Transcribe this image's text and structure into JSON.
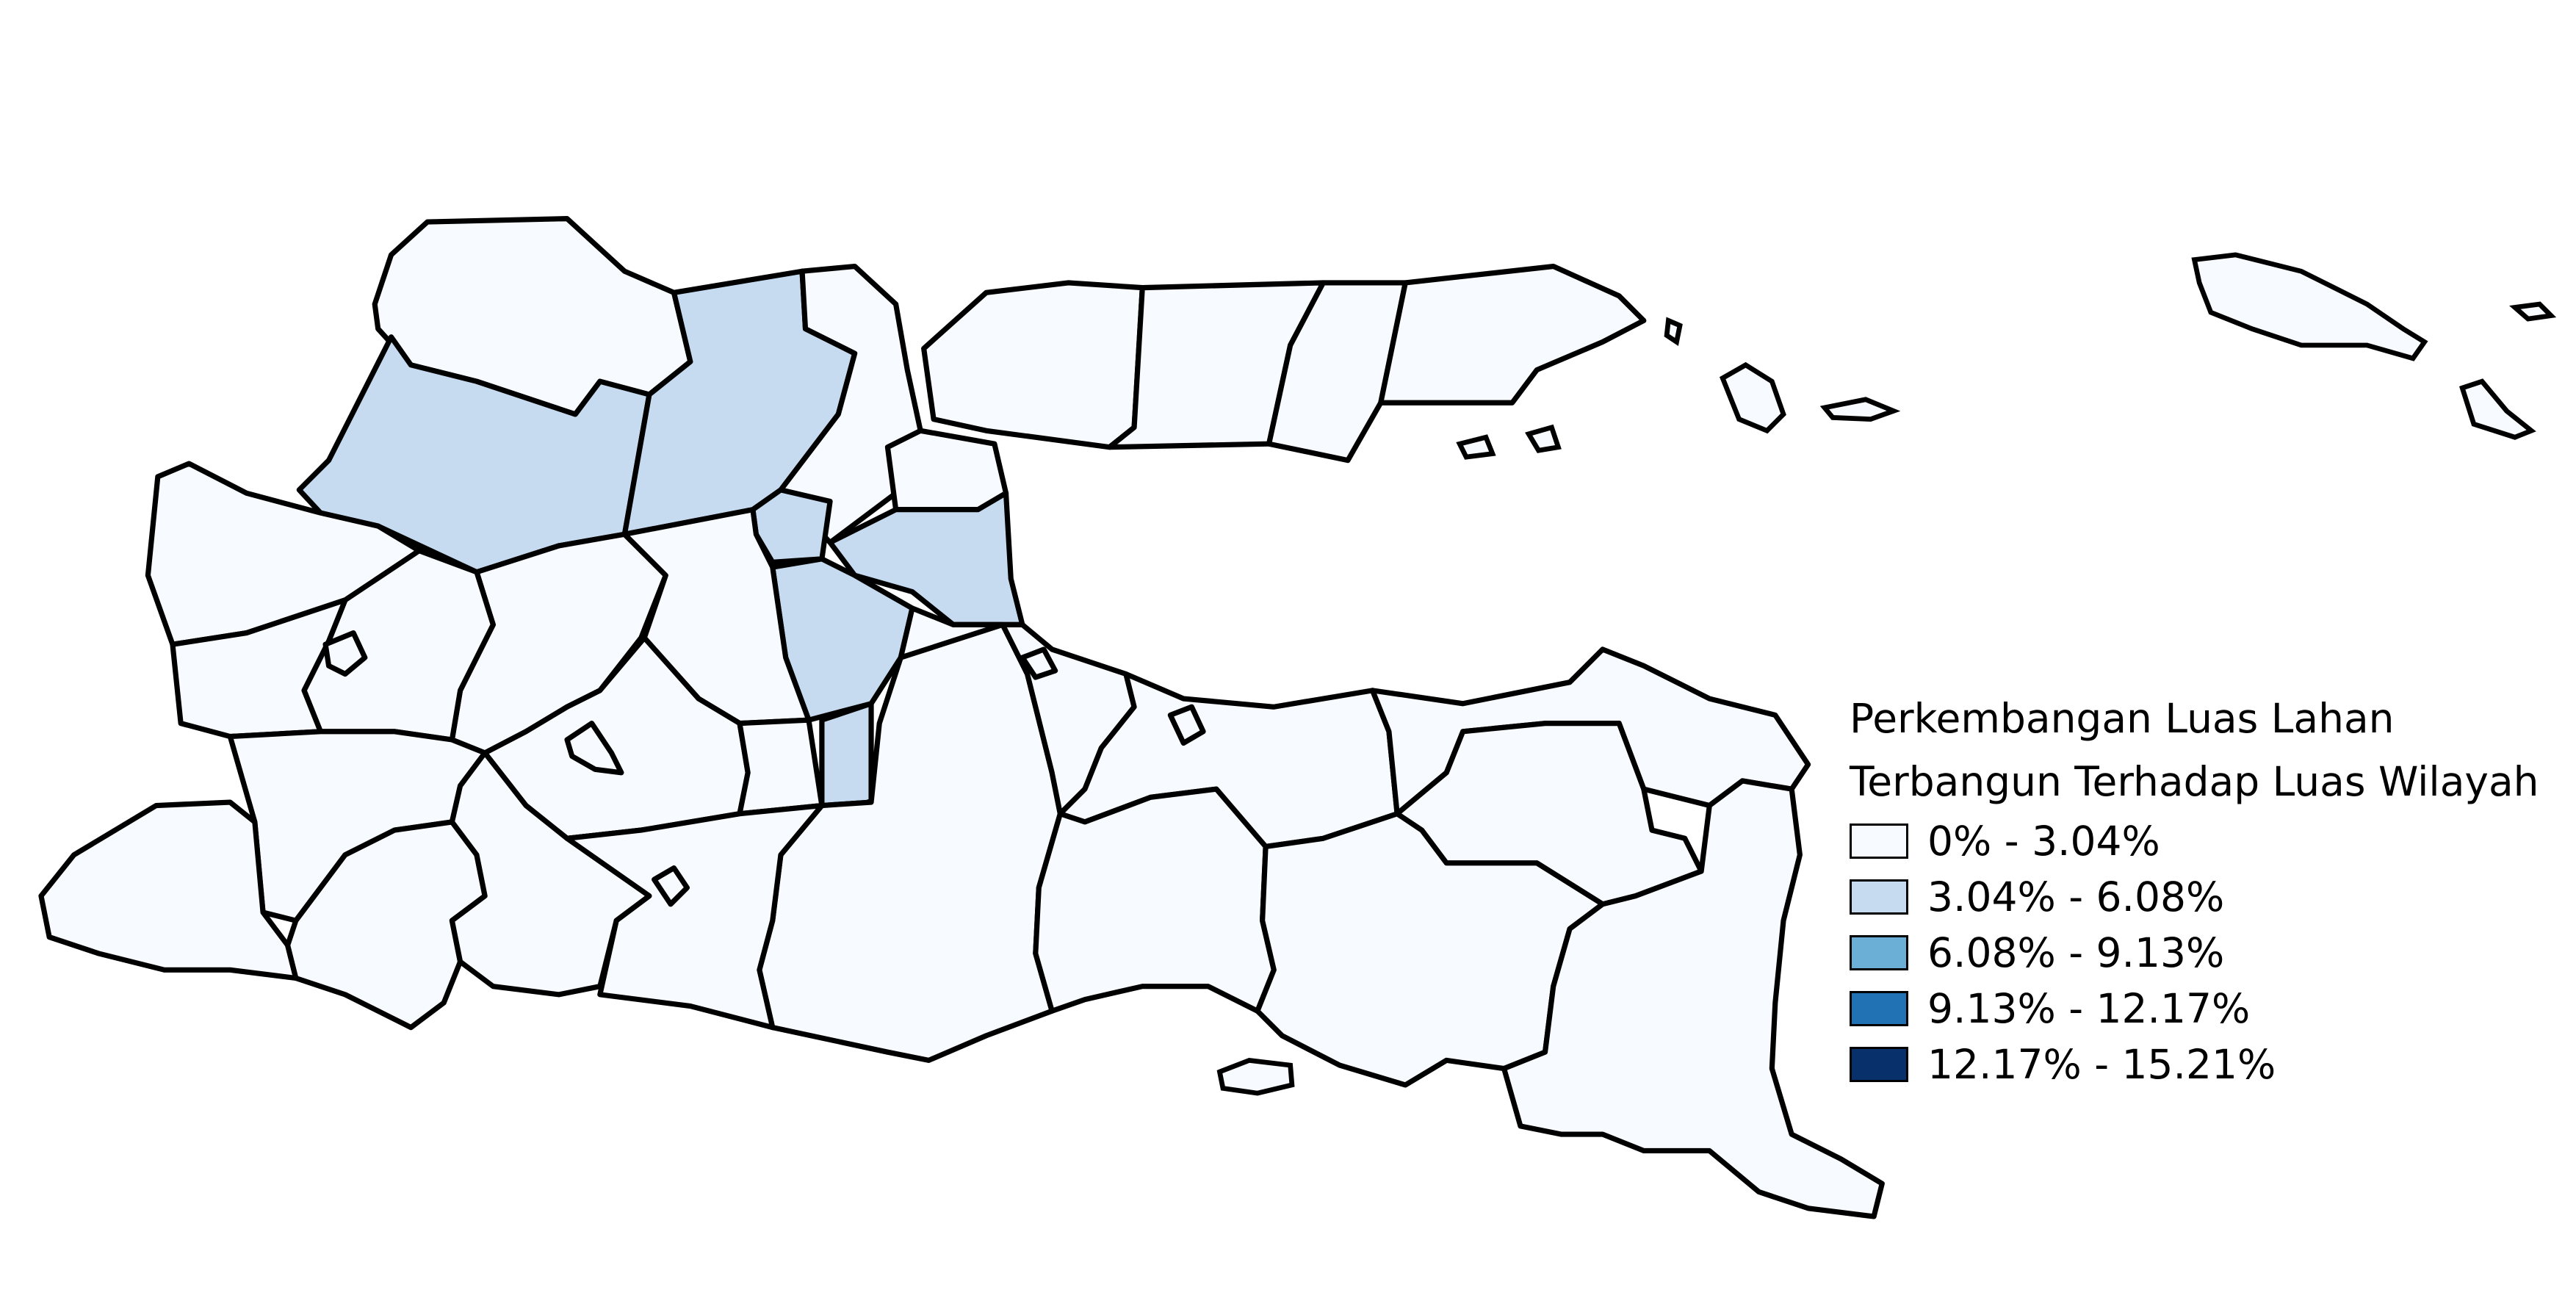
{
  "legend": {
    "title_line1": "Perkembangan Luas Lahan",
    "title_line2": "Terbangun Terhadap Luas Wilayah",
    "classes": [
      {
        "label": "0% - 3.04%",
        "color": "#f7fbff"
      },
      {
        "label": "3.04% - 6.08%",
        "color": "#c6dbef"
      },
      {
        "label": "6.08% - 9.13%",
        "color": "#6baed6"
      },
      {
        "label": "9.13% - 12.17%",
        "color": "#2171b5"
      },
      {
        "label": "12.17% - 15.21%",
        "color": "#08306b"
      }
    ]
  },
  "map_colors": {
    "class_1": "#f7fbff",
    "class_2": "#c6dbef",
    "outline": "#000000"
  }
}
